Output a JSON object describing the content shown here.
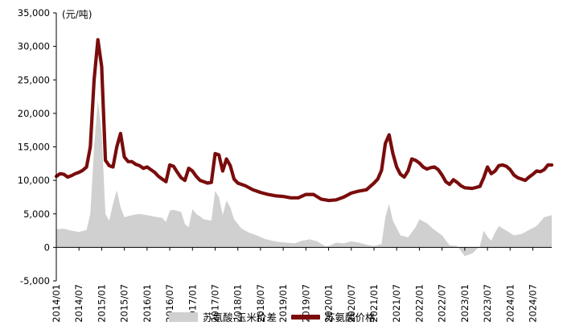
{
  "chart_data": {
    "type": "line",
    "unit_label": "(元/吨)",
    "ylim": [
      -5000,
      35000
    ],
    "yticks": [
      -5000,
      0,
      5000,
      10000,
      15000,
      20000,
      25000,
      30000,
      35000
    ],
    "ytick_labels": [
      "-5,000",
      "0",
      "5,000",
      "10,000",
      "15,000",
      "20,000",
      "25,000",
      "30,000",
      "35,000"
    ],
    "xtick_labels": [
      "2014/01",
      "2014/07",
      "2015/01",
      "2015/07",
      "2016/01",
      "2016/07",
      "2017/01",
      "2017/07",
      "2018/01",
      "2018/07",
      "2019/01",
      "2019/07",
      "2020/01",
      "2020/07",
      "2021/01",
      "2021/07",
      "2022/01",
      "2022/07",
      "2023/01",
      "2023/07",
      "2024/01",
      "2024/07"
    ],
    "xlim": [
      "2014/01",
      "2024/12"
    ],
    "series": [
      {
        "name": "苏氨酸-玉米价差",
        "type": "area",
        "color": "#d0d0d0",
        "points": [
          [
            "2014/01",
            2700
          ],
          [
            "2014/03",
            2800
          ],
          [
            "2014/05",
            2500
          ],
          [
            "2014/07",
            2300
          ],
          [
            "2014/09",
            2600
          ],
          [
            "2014/10",
            5000
          ],
          [
            "2014/11",
            15000
          ],
          [
            "2014/12",
            22000
          ],
          [
            "2015/01",
            17000
          ],
          [
            "2015/02",
            5000
          ],
          [
            "2015/03",
            4000
          ],
          [
            "2015/04",
            6500
          ],
          [
            "2015/05",
            8500
          ],
          [
            "2015/06",
            6000
          ],
          [
            "2015/07",
            4500
          ],
          [
            "2015/09",
            4800
          ],
          [
            "2015/11",
            5000
          ],
          [
            "2016/01",
            4800
          ],
          [
            "2016/03",
            4600
          ],
          [
            "2016/05",
            4400
          ],
          [
            "2016/06",
            3800
          ],
          [
            "2016/07",
            5500
          ],
          [
            "2016/08",
            5600
          ],
          [
            "2016/10",
            5300
          ],
          [
            "2016/11",
            3500
          ],
          [
            "2016/12",
            3000
          ],
          [
            "2017/01",
            5700
          ],
          [
            "2017/02",
            5000
          ],
          [
            "2017/04",
            4200
          ],
          [
            "2017/06",
            4000
          ],
          [
            "2017/07",
            8400
          ],
          [
            "2017/08",
            7500
          ],
          [
            "2017/09",
            4800
          ],
          [
            "2017/10",
            7000
          ],
          [
            "2017/11",
            6000
          ],
          [
            "2017/12",
            4200
          ],
          [
            "2018/02",
            2800
          ],
          [
            "2018/04",
            2200
          ],
          [
            "2018/06",
            1800
          ],
          [
            "2018/08",
            1300
          ],
          [
            "2018/10",
            1000
          ],
          [
            "2018/12",
            800
          ],
          [
            "2019/02",
            700
          ],
          [
            "2019/04",
            600
          ],
          [
            "2019/06",
            1000
          ],
          [
            "2019/08",
            1200
          ],
          [
            "2019/10",
            900
          ],
          [
            "2019/12",
            200
          ],
          [
            "2020/01",
            200
          ],
          [
            "2020/03",
            700
          ],
          [
            "2020/05",
            600
          ],
          [
            "2020/07",
            900
          ],
          [
            "2020/09",
            700
          ],
          [
            "2020/11",
            400
          ],
          [
            "2021/01",
            200
          ],
          [
            "2021/03",
            500
          ],
          [
            "2021/04",
            4500
          ],
          [
            "2021/05",
            6500
          ],
          [
            "2021/06",
            4000
          ],
          [
            "2021/08",
            1800
          ],
          [
            "2021/10",
            1500
          ],
          [
            "2021/12",
            3000
          ],
          [
            "2022/01",
            4200
          ],
          [
            "2022/03",
            3600
          ],
          [
            "2022/05",
            2600
          ],
          [
            "2022/07",
            1800
          ],
          [
            "2022/09",
            300
          ],
          [
            "2022/11",
            200
          ],
          [
            "2023/01",
            -1300
          ],
          [
            "2023/03",
            -900
          ],
          [
            "2023/05",
            200
          ],
          [
            "2023/06",
            2500
          ],
          [
            "2023/07",
            1600
          ],
          [
            "2023/08",
            1000
          ],
          [
            "2023/09",
            2200
          ],
          [
            "2023/10",
            3200
          ],
          [
            "2023/12",
            2500
          ],
          [
            "2024/02",
            1800
          ],
          [
            "2024/04",
            2000
          ],
          [
            "2024/06",
            2600
          ],
          [
            "2024/08",
            3200
          ],
          [
            "2024/10",
            4500
          ],
          [
            "2024/12",
            4800
          ]
        ]
      },
      {
        "name": "苏氨酸价格",
        "type": "line",
        "color": "#7a0c0c",
        "points": [
          [
            "2014/01",
            10600
          ],
          [
            "2014/02",
            11000
          ],
          [
            "2014/03",
            10900
          ],
          [
            "2014/04",
            10500
          ],
          [
            "2014/05",
            10700
          ],
          [
            "2014/06",
            11000
          ],
          [
            "2014/07",
            11200
          ],
          [
            "2014/08",
            11500
          ],
          [
            "2014/09",
            12000
          ],
          [
            "2014/10",
            15000
          ],
          [
            "2014/11",
            25000
          ],
          [
            "2014/12",
            31000
          ],
          [
            "2015/01",
            27000
          ],
          [
            "2015/02",
            13000
          ],
          [
            "2015/03",
            12200
          ],
          [
            "2015/04",
            12000
          ],
          [
            "2015/05",
            15000
          ],
          [
            "2015/06",
            17000
          ],
          [
            "2015/07",
            13500
          ],
          [
            "2015/08",
            12800
          ],
          [
            "2015/09",
            12800
          ],
          [
            "2015/10",
            12400
          ],
          [
            "2015/11",
            12200
          ],
          [
            "2015/12",
            11800
          ],
          [
            "2016/01",
            12000
          ],
          [
            "2016/02",
            11600
          ],
          [
            "2016/03",
            11200
          ],
          [
            "2016/04",
            10600
          ],
          [
            "2016/05",
            10200
          ],
          [
            "2016/06",
            9800
          ],
          [
            "2016/07",
            12300
          ],
          [
            "2016/08",
            12100
          ],
          [
            "2016/09",
            11200
          ],
          [
            "2016/10",
            10400
          ],
          [
            "2016/11",
            10000
          ],
          [
            "2016/12",
            11800
          ],
          [
            "2017/01",
            11400
          ],
          [
            "2017/02",
            10600
          ],
          [
            "2017/03",
            10000
          ],
          [
            "2017/04",
            9800
          ],
          [
            "2017/05",
            9600
          ],
          [
            "2017/06",
            9700
          ],
          [
            "2017/07",
            14000
          ],
          [
            "2017/08",
            13800
          ],
          [
            "2017/09",
            11400
          ],
          [
            "2017/10",
            13200
          ],
          [
            "2017/11",
            12200
          ],
          [
            "2017/12",
            10200
          ],
          [
            "2018/01",
            9600
          ],
          [
            "2018/03",
            9200
          ],
          [
            "2018/05",
            8600
          ],
          [
            "2018/07",
            8200
          ],
          [
            "2018/09",
            7900
          ],
          [
            "2018/11",
            7700
          ],
          [
            "2019/01",
            7600
          ],
          [
            "2019/03",
            7400
          ],
          [
            "2019/05",
            7400
          ],
          [
            "2019/07",
            7900
          ],
          [
            "2019/09",
            7900
          ],
          [
            "2019/11",
            7200
          ],
          [
            "2020/01",
            7000
          ],
          [
            "2020/03",
            7100
          ],
          [
            "2020/05",
            7500
          ],
          [
            "2020/07",
            8100
          ],
          [
            "2020/09",
            8400
          ],
          [
            "2020/11",
            8600
          ],
          [
            "2021/01",
            9600
          ],
          [
            "2021/02",
            10200
          ],
          [
            "2021/03",
            11500
          ],
          [
            "2021/04",
            15500
          ],
          [
            "2021/05",
            16800
          ],
          [
            "2021/06",
            14000
          ],
          [
            "2021/07",
            12000
          ],
          [
            "2021/08",
            10900
          ],
          [
            "2021/09",
            10500
          ],
          [
            "2021/10",
            11400
          ],
          [
            "2021/11",
            13200
          ],
          [
            "2021/12",
            13000
          ],
          [
            "2022/01",
            12600
          ],
          [
            "2022/02",
            12000
          ],
          [
            "2022/03",
            11700
          ],
          [
            "2022/04",
            11900
          ],
          [
            "2022/05",
            12000
          ],
          [
            "2022/06",
            11600
          ],
          [
            "2022/07",
            10800
          ],
          [
            "2022/08",
            9800
          ],
          [
            "2022/09",
            9400
          ],
          [
            "2022/10",
            10100
          ],
          [
            "2022/11",
            9700
          ],
          [
            "2022/12",
            9200
          ],
          [
            "2023/01",
            8900
          ],
          [
            "2023/03",
            8800
          ],
          [
            "2023/05",
            9100
          ],
          [
            "2023/06",
            10400
          ],
          [
            "2023/07",
            12000
          ],
          [
            "2023/08",
            11000
          ],
          [
            "2023/09",
            11400
          ],
          [
            "2023/10",
            12200
          ],
          [
            "2023/11",
            12300
          ],
          [
            "2023/12",
            12100
          ],
          [
            "2024/01",
            11600
          ],
          [
            "2024/02",
            10800
          ],
          [
            "2024/03",
            10400
          ],
          [
            "2024/04",
            10200
          ],
          [
            "2024/05",
            10000
          ],
          [
            "2024/06",
            10500
          ],
          [
            "2024/07",
            10900
          ],
          [
            "2024/08",
            11400
          ],
          [
            "2024/09",
            11300
          ],
          [
            "2024/10",
            11600
          ],
          [
            "2024/11",
            12300
          ],
          [
            "2024/12",
            12300
          ]
        ]
      }
    ],
    "legend_position": "bottom",
    "grid": false
  }
}
